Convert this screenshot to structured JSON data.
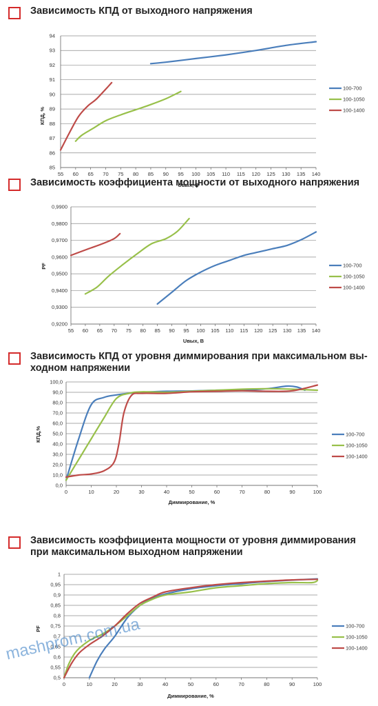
{
  "colors": {
    "accent_box": "#d42a2a",
    "series": [
      "#4a7ebb",
      "#98c04a",
      "#be4b48"
    ],
    "grid": "#8c8c8c",
    "watermark": "#2f78c2"
  },
  "watermark": "mashprom.com.ua",
  "chart_data": [
    {
      "type": "line",
      "title": "Зависимость КПД от выходного напряжения",
      "xlabel": "Uвых, В",
      "ylabel": "КПД, %",
      "xlim": [
        55,
        140
      ],
      "ylim": [
        85,
        94
      ],
      "x_ticks": [
        "55",
        "60",
        "65",
        "70",
        "75",
        "80",
        "85",
        "90",
        "95",
        "100",
        "105",
        "110",
        "115",
        "120",
        "125",
        "130",
        "135",
        "140"
      ],
      "y_ticks": [
        "85",
        "86",
        "87",
        "88",
        "89",
        "90",
        "91",
        "92",
        "93",
        "94"
      ],
      "grid": "horizontal",
      "legend_position": "right",
      "series": [
        {
          "name": "100-700",
          "points": [
            [
              85,
              92.1
            ],
            [
              90,
              92.2
            ],
            [
              100,
              92.45
            ],
            [
              110,
              92.7
            ],
            [
              120,
              93.0
            ],
            [
              130,
              93.35
            ],
            [
              140,
              93.6
            ]
          ]
        },
        {
          "name": "100-1050",
          "points": [
            [
              60,
              86.8
            ],
            [
              62,
              87.2
            ],
            [
              66,
              87.7
            ],
            [
              70,
              88.2
            ],
            [
              75,
              88.6
            ],
            [
              80,
              88.95
            ],
            [
              85,
              89.3
            ],
            [
              90,
              89.7
            ],
            [
              95,
              90.2
            ]
          ]
        },
        {
          "name": "100-1400",
          "points": [
            [
              55,
              86.2
            ],
            [
              58,
              87.4
            ],
            [
              61,
              88.5
            ],
            [
              64,
              89.2
            ],
            [
              67,
              89.7
            ],
            [
              72,
              90.8
            ]
          ]
        }
      ]
    },
    {
      "type": "line",
      "title": "Зависимость коэффициента мощности от выходного напряжения",
      "xlabel": "Uвых, В",
      "ylabel": "PF",
      "xlim": [
        55,
        140
      ],
      "ylim": [
        0.92,
        0.99
      ],
      "x_ticks": [
        "55",
        "60",
        "65",
        "70",
        "75",
        "80",
        "85",
        "90",
        "95",
        "100",
        "105",
        "110",
        "115",
        "120",
        "125",
        "130",
        "135",
        "140"
      ],
      "y_ticks": [
        "0,9200",
        "0,9300",
        "0,9400",
        "0,9500",
        "0,9600",
        "0,9700",
        "0,9800",
        "0,9900"
      ],
      "grid": "horizontal",
      "legend_position": "right",
      "series": [
        {
          "name": "100-700",
          "points": [
            [
              85,
              0.932
            ],
            [
              90,
              0.939
            ],
            [
              95,
              0.946
            ],
            [
              100,
              0.951
            ],
            [
              105,
              0.955
            ],
            [
              110,
              0.958
            ],
            [
              115,
              0.961
            ],
            [
              120,
              0.963
            ],
            [
              125,
              0.965
            ],
            [
              130,
              0.967
            ],
            [
              135,
              0.9705
            ],
            [
              140,
              0.975
            ]
          ]
        },
        {
          "name": "100-1050",
          "points": [
            [
              60,
              0.938
            ],
            [
              64,
              0.942
            ],
            [
              68,
              0.9485
            ],
            [
              73,
              0.9555
            ],
            [
              78,
              0.962
            ],
            [
              83,
              0.968
            ],
            [
              88,
              0.971
            ],
            [
              92,
              0.9755
            ],
            [
              96,
              0.983
            ]
          ]
        },
        {
          "name": "100-1400",
          "points": [
            [
              55,
              0.961
            ],
            [
              58,
              0.963
            ],
            [
              62,
              0.9655
            ],
            [
              66,
              0.968
            ],
            [
              70,
              0.971
            ],
            [
              72,
              0.974
            ]
          ]
        }
      ]
    },
    {
      "type": "line",
      "title": "Зависимость КПД от уровня диммирования при максимальном вы-ходном напряжении",
      "title_lines": [
        "Зависимость КПД от уровня диммирования при максимальном вы-",
        "ходном напряжении"
      ],
      "xlabel": "Диммирование, %",
      "ylabel": "КПД,%",
      "xlim": [
        0,
        100
      ],
      "ylim": [
        0,
        100
      ],
      "x_ticks": [
        "0",
        "10",
        "20",
        "30",
        "40",
        "50",
        "60",
        "70",
        "80",
        "90",
        "100"
      ],
      "y_ticks": [
        "0,0",
        "10,0",
        "20,0",
        "30,0",
        "40,0",
        "50,0",
        "60,0",
        "70,0",
        "80,0",
        "90,0",
        "100,0"
      ],
      "grid": "horizontal",
      "legend_position": "right",
      "series": [
        {
          "name": "100-700",
          "points": [
            [
              0,
              5
            ],
            [
              5,
              45
            ],
            [
              10,
              78
            ],
            [
              15,
              85
            ],
            [
              20,
              87.5
            ],
            [
              25,
              89
            ],
            [
              30,
              90
            ],
            [
              40,
              91
            ],
            [
              50,
              91.3
            ],
            [
              60,
              92
            ],
            [
              70,
              92
            ],
            [
              80,
              93.5
            ],
            [
              88,
              96
            ],
            [
              92,
              95
            ],
            [
              95,
              92
            ]
          ]
        },
        {
          "name": "100-1050",
          "points": [
            [
              0,
              5
            ],
            [
              5,
              25
            ],
            [
              10,
              45
            ],
            [
              15,
              65
            ],
            [
              20,
              84
            ],
            [
              25,
              89
            ],
            [
              30,
              90.5
            ],
            [
              40,
              90
            ],
            [
              50,
              91
            ],
            [
              60,
              92
            ],
            [
              70,
              93
            ],
            [
              80,
              93.5
            ],
            [
              90,
              93
            ],
            [
              100,
              92
            ]
          ]
        },
        {
          "name": "100-1400",
          "points": [
            [
              0,
              8
            ],
            [
              5,
              10
            ],
            [
              10,
              11
            ],
            [
              15,
              14
            ],
            [
              19,
              22
            ],
            [
              21,
              40
            ],
            [
              23,
              70
            ],
            [
              26,
              87
            ],
            [
              30,
              89
            ],
            [
              40,
              89
            ],
            [
              50,
              90.5
            ],
            [
              60,
              91
            ],
            [
              70,
              91.5
            ],
            [
              80,
              91
            ],
            [
              90,
              91.5
            ],
            [
              100,
              97
            ]
          ]
        }
      ]
    },
    {
      "type": "line",
      "title": "Зависимость коэффициента мощности от уровня диммирования при максимальном выходном напряжении",
      "title_lines": [
        "Зависимость коэффициента мощности от уровня диммирования",
        "при максимальном выходном напряжении"
      ],
      "xlabel": "Диммирование, %",
      "ylabel": "PF",
      "xlim": [
        0,
        100
      ],
      "ylim": [
        0.5,
        1
      ],
      "x_ticks": [
        "0",
        "10",
        "20",
        "30",
        "40",
        "50",
        "60",
        "70",
        "80",
        "90",
        "100"
      ],
      "y_ticks": [
        "0,5",
        "0,55",
        "0,6",
        "0,65",
        "0,7",
        "0,75",
        "0,8",
        "0,85",
        "0,9",
        "0,95",
        "1"
      ],
      "grid": "horizontal",
      "legend_position": "right",
      "series": [
        {
          "name": "100-700",
          "points": [
            [
              10,
              0.5
            ],
            [
              13,
              0.58
            ],
            [
              16,
              0.64
            ],
            [
              20,
              0.7
            ],
            [
              25,
              0.79
            ],
            [
              30,
              0.85
            ],
            [
              35,
              0.885
            ],
            [
              40,
              0.905
            ],
            [
              50,
              0.93
            ],
            [
              60,
              0.945
            ],
            [
              70,
              0.955
            ],
            [
              80,
              0.965
            ],
            [
              90,
              0.972
            ],
            [
              100,
              0.978
            ]
          ]
        },
        {
          "name": "100-1050",
          "points": [
            [
              0,
              0.5
            ],
            [
              2,
              0.57
            ],
            [
              5,
              0.63
            ],
            [
              10,
              0.68
            ],
            [
              15,
              0.71
            ],
            [
              20,
              0.75
            ],
            [
              25,
              0.8
            ],
            [
              30,
              0.85
            ],
            [
              35,
              0.88
            ],
            [
              40,
              0.9
            ],
            [
              50,
              0.915
            ],
            [
              60,
              0.935
            ],
            [
              70,
              0.945
            ],
            [
              80,
              0.955
            ],
            [
              90,
              0.96
            ],
            [
              98,
              0.96
            ],
            [
              100,
              0.97
            ]
          ]
        },
        {
          "name": "100-1400",
          "points": [
            [
              0,
              0.5
            ],
            [
              3,
              0.57
            ],
            [
              6,
              0.62
            ],
            [
              10,
              0.66
            ],
            [
              15,
              0.7
            ],
            [
              20,
              0.75
            ],
            [
              25,
              0.81
            ],
            [
              30,
              0.86
            ],
            [
              35,
              0.89
            ],
            [
              40,
              0.915
            ],
            [
              50,
              0.935
            ],
            [
              60,
              0.95
            ],
            [
              70,
              0.96
            ],
            [
              80,
              0.967
            ],
            [
              90,
              0.973
            ],
            [
              100,
              0.976
            ]
          ]
        }
      ]
    }
  ]
}
